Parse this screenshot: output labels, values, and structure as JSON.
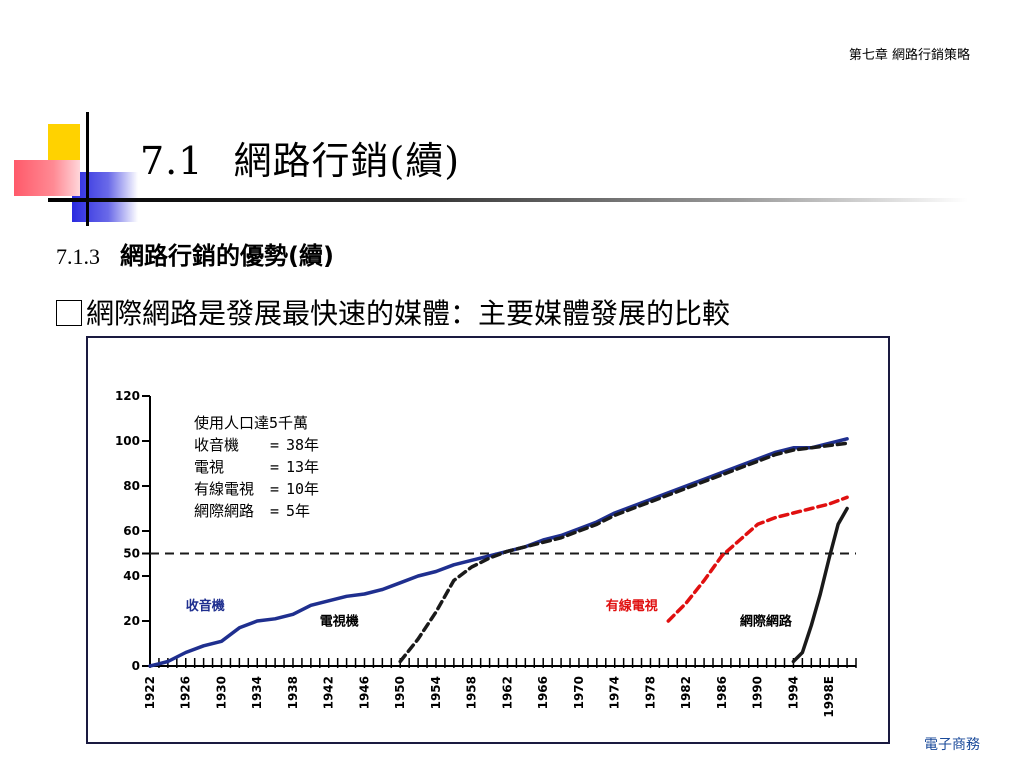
{
  "header": {
    "chapter": "第七章  網路行銷策略"
  },
  "title": {
    "number": "7.1",
    "text": "網路行銷(續)"
  },
  "section": {
    "number": "7.1.3",
    "title": "網路行銷的優勢(續)"
  },
  "bullet": {
    "text": "網際網路是發展最快速的媒體：主要媒體發展的比較"
  },
  "footer": {
    "text": "電子商務"
  },
  "colors": {
    "radio": "#1f2f8f",
    "tv": "#1a1a1a",
    "cable": "#e01010",
    "internet": "#1a1a1a",
    "reference": "#1a1a1a"
  },
  "chart_data": {
    "type": "line",
    "xlim": [
      1922,
      2001
    ],
    "ylim": [
      0,
      120
    ],
    "yticks": [
      0,
      20,
      40,
      50,
      60,
      80,
      100,
      120
    ],
    "xticks": [
      "1922",
      "1926",
      "1930",
      "1934",
      "1938",
      "1942",
      "1946",
      "1950",
      "1954",
      "1958",
      "1962",
      "1966",
      "1970",
      "1974",
      "1978",
      "1982",
      "1986",
      "1990",
      "1994",
      "1998E"
    ],
    "reference_line": {
      "y": 50,
      "style": "dashed"
    },
    "legend_box": {
      "title": "使用人口達5千萬",
      "rows": [
        {
          "label": "收音機",
          "sep": "=",
          "value": "38年"
        },
        {
          "label": "電視",
          "sep": "=",
          "value": "13年"
        },
        {
          "label": "有線電視",
          "sep": "=",
          "value": "10年"
        },
        {
          "label": "網際網路",
          "sep": "=",
          "value": "5年"
        }
      ]
    },
    "series": [
      {
        "name": "收音機",
        "style": "solid",
        "x": [
          1922,
          1923,
          1924,
          1926,
          1928,
          1930,
          1932,
          1934,
          1936,
          1938,
          1940,
          1942,
          1944,
          1946,
          1948,
          1950,
          1952,
          1954,
          1956,
          1958,
          1960,
          1962,
          1964,
          1966,
          1968,
          1970,
          1972,
          1974,
          1976,
          1978,
          1980,
          1982,
          1984,
          1986,
          1988,
          1990,
          1992,
          1994,
          1996,
          1998,
          2000
        ],
        "y": [
          0,
          1,
          2,
          6,
          9,
          11,
          17,
          20,
          21,
          23,
          27,
          29,
          31,
          32,
          34,
          37,
          40,
          42,
          45,
          47,
          49,
          51,
          53,
          56,
          58,
          61,
          64,
          68,
          71,
          74,
          77,
          80,
          83,
          86,
          89,
          92,
          95,
          97,
          97,
          99,
          101
        ]
      },
      {
        "name": "電視機",
        "style": "dashed",
        "x": [
          1950,
          1952,
          1954,
          1956,
          1958,
          1960,
          1962,
          1964,
          1966,
          1968,
          1970,
          1972,
          1974,
          1976,
          1978,
          1980,
          1982,
          1984,
          1986,
          1988,
          1990,
          1992,
          1994,
          1996,
          1998,
          2000
        ],
        "y": [
          2,
          12,
          24,
          38,
          44,
          48,
          51,
          53,
          55,
          57,
          60,
          63,
          67,
          70,
          73,
          76,
          79,
          82,
          85,
          88,
          91,
          94,
          96,
          97,
          98,
          99
        ]
      },
      {
        "name": "有線電視",
        "style": "dashed",
        "x": [
          1980,
          1982,
          1984,
          1986,
          1988,
          1990,
          1992,
          1994,
          1996,
          1998,
          2000
        ],
        "y": [
          20,
          28,
          38,
          49,
          56,
          63,
          66,
          68,
          70,
          72,
          75
        ]
      },
      {
        "name": "網際網路",
        "style": "solid",
        "x": [
          1994,
          1995,
          1996,
          1997,
          1998,
          1999,
          2000
        ],
        "y": [
          2,
          6,
          18,
          32,
          48,
          63,
          70
        ]
      }
    ],
    "series_labels": [
      {
        "text": "收音機",
        "series": "收音機"
      },
      {
        "text": "電視機",
        "series": "電視機"
      },
      {
        "text": "有線電視",
        "series": "有線電視"
      },
      {
        "text": "網際網路",
        "series": "網際網路"
      }
    ]
  }
}
